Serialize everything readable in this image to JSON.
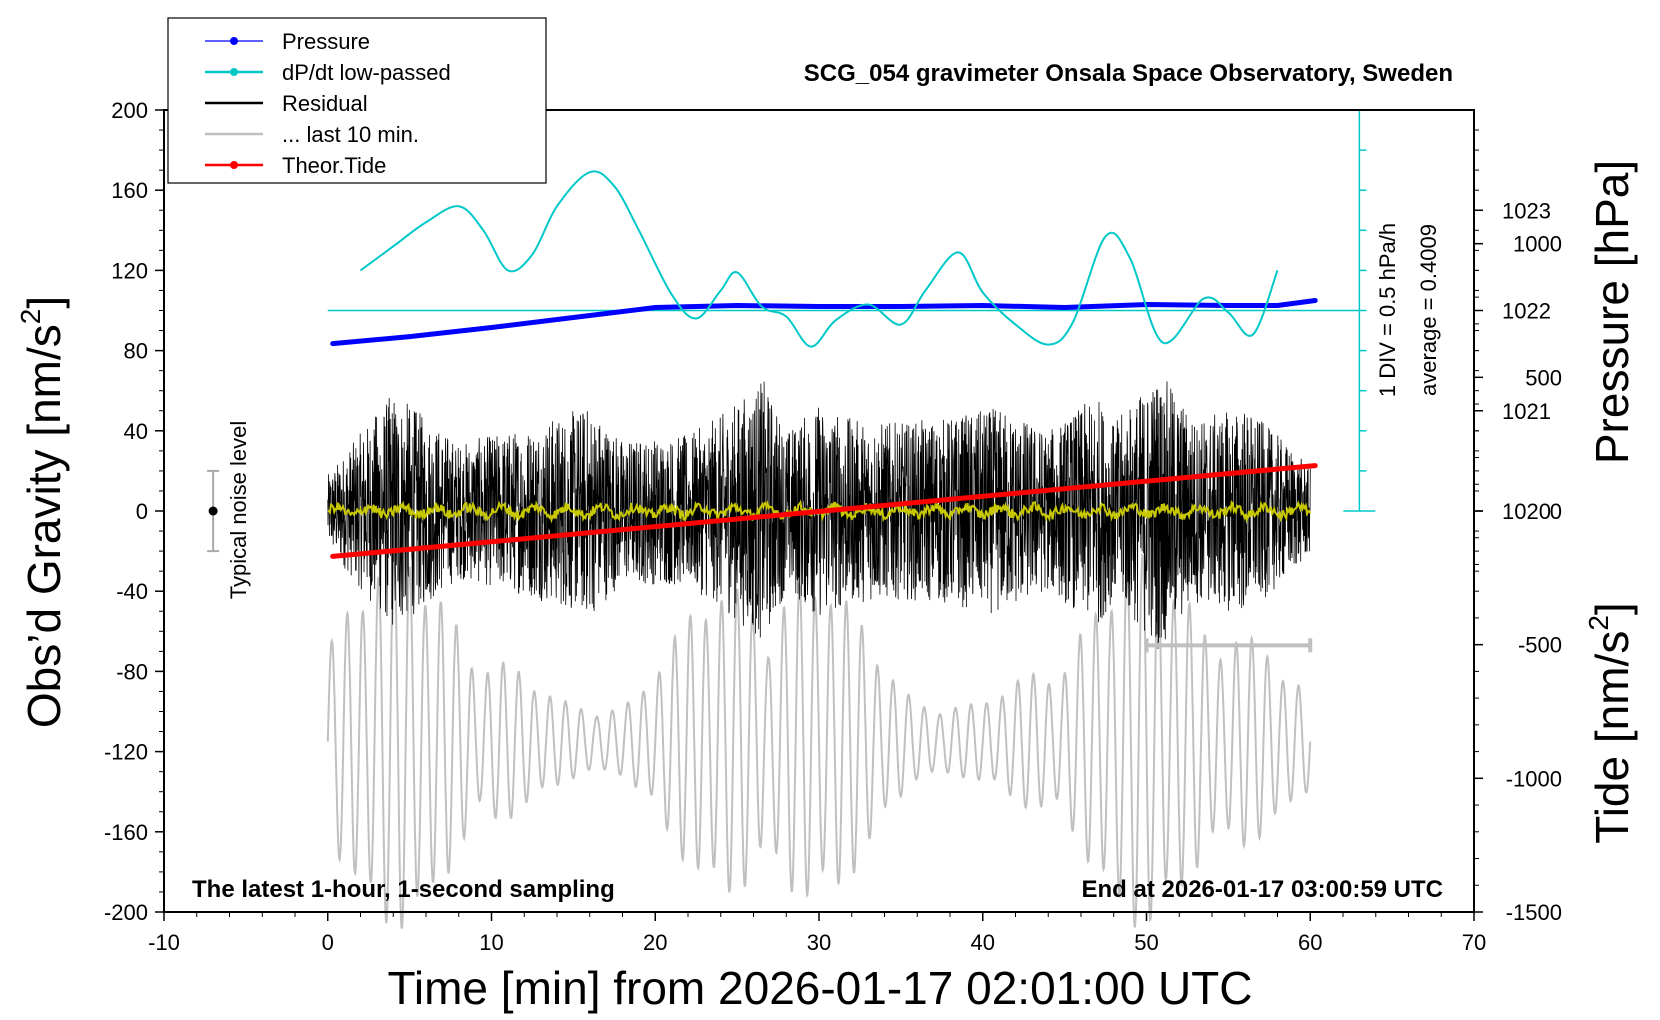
{
  "chart_data": {
    "type": "line",
    "title": "SCG_054 gravimeter Onsala Space Observatory, Sweden",
    "xlabel": "Time [min] from 2026-01-17 02:01:00 UTC",
    "ylabel_left": "Obs’d Gravity [nm/s",
    "ylabel_left_sup": "2",
    "ylabel_left_end": "]",
    "ylabel_right_top": "Pressure [hPa]",
    "ylabel_right_bottom": "Tide [nm/s",
    "ylabel_right_bottom_sup": "2",
    "ylabel_right_bottom_end": "]",
    "xlim": [
      -10,
      70
    ],
    "ylim": [
      -200,
      200
    ],
    "pressure_lim": [
      1016,
      1024
    ],
    "tide_lim": [
      -1500,
      1500
    ],
    "x_ticks": [
      "-10",
      "0",
      "10",
      "20",
      "30",
      "40",
      "50",
      "60",
      "70"
    ],
    "y_ticks": [
      "200",
      "160",
      "120",
      "80",
      "40",
      "0",
      "-40",
      "-80",
      "-120",
      "-160",
      "-200"
    ],
    "pressure_ticks": [
      "1023",
      "1022",
      "1021",
      "1020"
    ],
    "tide_ticks": [
      "1000",
      "500",
      "0",
      "-500",
      "-1000",
      "-1500"
    ],
    "annotations": {
      "bottom_left": "The latest 1-hour, 1-second sampling",
      "bottom_right": "End at 2026-01-17 03:00:59 UTC",
      "noise": "Typical noise level",
      "div_scale": "1 DIV = 0.5 hPa/h",
      "average": "average = 0.4009"
    },
    "legend": [
      {
        "name": "Pressure",
        "color": "#0000ff",
        "marker": true
      },
      {
        "name": "dP/dt low-passed",
        "color": "#00c8c8",
        "marker": true
      },
      {
        "name": "Residual",
        "color": "#000000",
        "marker": false
      },
      {
        "name": "... last 10 min.",
        "color": "#c0c0c0",
        "marker": false
      },
      {
        "name": "Theor.Tide",
        "color": "#ff0000",
        "marker": true
      }
    ],
    "series": [
      {
        "name": "Pressure",
        "axis": "pressure",
        "color": "#0000ff",
        "x": [
          0.3,
          5,
          10,
          15,
          20,
          25,
          30,
          35,
          40,
          45,
          50,
          55,
          58,
          60.3
        ],
        "y": [
          1021.67,
          1021.74,
          1021.83,
          1021.93,
          1022.03,
          1022.05,
          1022.04,
          1022.04,
          1022.05,
          1022.03,
          1022.06,
          1022.05,
          1022.05,
          1022.1
        ]
      },
      {
        "name": "dP/dt low-passed",
        "axis": "gravity",
        "color": "#00c8c8",
        "x": [
          2,
          4,
          6,
          8,
          9.5,
          11,
          12.5,
          14,
          16,
          17.5,
          19,
          21,
          22.5,
          24,
          25,
          26.5,
          28,
          29.5,
          31,
          33,
          35,
          36.5,
          38.5,
          40,
          42,
          44,
          45.5,
          47.5,
          49,
          51,
          53.5,
          55,
          56.5,
          58
        ],
        "y": [
          120,
          132,
          144,
          152,
          140,
          120,
          128,
          152,
          169,
          162,
          140,
          108,
          96,
          110,
          119,
          102,
          97,
          82,
          95,
          103,
          93,
          110,
          129,
          109,
          93,
          83,
          94,
          137,
          126,
          84,
          106,
          99,
          88,
          120
        ]
      },
      {
        "name": "Theor.Tide",
        "axis": "tide",
        "color": "#ff0000",
        "x": [
          0.3,
          60.3
        ],
        "y": [
          -170,
          170
        ]
      }
    ],
    "reference_lines": [
      {
        "name": "dP/dt zero",
        "axis": "gravity",
        "y": 100,
        "x_range": [
          0,
          63
        ],
        "color": "#00c8c8"
      }
    ],
    "residual_envelope": {
      "x": [
        0,
        4,
        8,
        12,
        16,
        18,
        22,
        24,
        26.6,
        28,
        30,
        32,
        35,
        38,
        41,
        44,
        47,
        48,
        50.8,
        53,
        56,
        58,
        60
      ],
      "amplitude": [
        18,
        60,
        34,
        42,
        53,
        36,
        38,
        48,
        66,
        40,
        54,
        46,
        44,
        47,
        52,
        40,
        58,
        44,
        70,
        46,
        52,
        38,
        22
      ]
    },
    "noise_bar": {
      "x": -7,
      "center": 0,
      "half_range": 20
    },
    "ten_min_marker": {
      "x_range": [
        50,
        60
      ],
      "y": -67
    }
  }
}
